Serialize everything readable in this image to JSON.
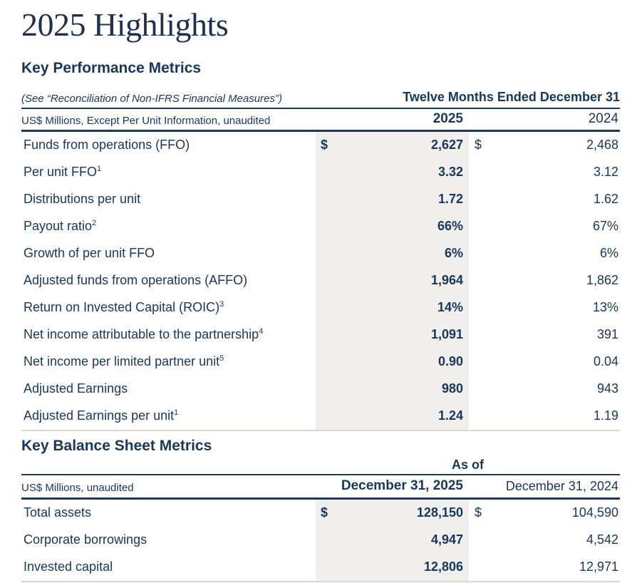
{
  "page": {
    "title": "2025 Highlights"
  },
  "colors": {
    "text_navy": "#16375e",
    "line_navy": "#1b3a5e",
    "title_navy": "#1c3151",
    "shaded_column_bg": "#f0efec",
    "light_divider": "#dbd8d2"
  },
  "kpm": {
    "heading": "Key Performance Metrics",
    "note": "(See “Reconciliation of Non-IFRS Financial Measures”)",
    "period_header": "Twelve Months Ended December 31",
    "unit_note": "US$ Millions, Except Per Unit Information, unaudited",
    "col_2025": "2025",
    "col_2024": "2024",
    "rows": [
      {
        "label": "Funds from operations (FFO)",
        "d25": "$",
        "v25": "2,627",
        "d24": "$",
        "v24": "2,468"
      },
      {
        "label": "Per unit FFO",
        "sup": "1",
        "v25": "3.32",
        "v24": "3.12"
      },
      {
        "label": "Distributions per unit",
        "v25": "1.72",
        "v24": "1.62"
      },
      {
        "label": "Payout ratio",
        "sup": "2",
        "v25": "66%",
        "v24": "67%"
      },
      {
        "label": "Growth of per unit FFO",
        "v25": "6%",
        "v24": "6%"
      },
      {
        "label": "Adjusted funds from operations (AFFO)",
        "v25": "1,964",
        "v24": "1,862"
      },
      {
        "label": "Return on Invested Capital (ROIC)",
        "sup": "3",
        "v25": "14%",
        "v24": "13%"
      },
      {
        "label": "Net income attributable to the partnership",
        "sup": "4",
        "v25": "1,091",
        "v24": "391"
      },
      {
        "label": "Net income per limited partner unit",
        "sup": "5",
        "v25": "0.90",
        "v24": "0.04"
      },
      {
        "label": "Adjusted Earnings",
        "v25": "980",
        "v24": "943"
      },
      {
        "label": "Adjusted Earnings per unit",
        "sup": "1",
        "v25": "1.24",
        "v24": "1.19"
      }
    ]
  },
  "kbs": {
    "heading": "Key Balance Sheet Metrics",
    "as_of": "As of",
    "unit_note": "US$ Millions, unaudited",
    "col_2025": "December 31, 2025",
    "col_2024": "December 31, 2024",
    "rows": [
      {
        "label": "Total assets",
        "d25": "$",
        "v25": "128,150",
        "d24": "$",
        "v24": "104,590"
      },
      {
        "label": "Corporate borrowings",
        "v25": "4,947",
        "v24": "4,542"
      },
      {
        "label": "Invested capital",
        "v25": "12,806",
        "v24": "12,971"
      }
    ]
  }
}
